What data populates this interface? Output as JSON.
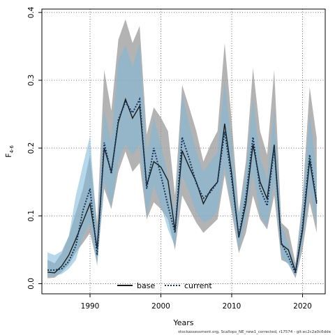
{
  "chart_data": {
    "type": "line",
    "xlabel": "Years",
    "ylabel_main": "F",
    "ylabel_sub": "4-6",
    "xlim": [
      1983.2,
      2023.2
    ],
    "ylim": [
      -0.015,
      0.405
    ],
    "x_ticks": [
      1990,
      2000,
      2010,
      2020
    ],
    "y_ticks": [
      0.0,
      0.1,
      0.2,
      0.3,
      0.4
    ],
    "y_tick_labels": [
      "0.0",
      "0.1",
      "0.2",
      "0.3",
      "0.4"
    ],
    "grid": true,
    "legend_position": "bottom",
    "footer": "stockassessment.org, Scallops_NE_new1_corrected, r17574 - git:ec2c2a0c6dde",
    "years": [
      1984,
      1985,
      1986,
      1987,
      1988,
      1989,
      1990,
      1991,
      1992,
      1993,
      1994,
      1995,
      1996,
      1997,
      1998,
      1999,
      2000,
      2001,
      2002,
      2003,
      2004,
      2005,
      2006,
      2007,
      2008,
      2009,
      2010,
      2011,
      2012,
      2013,
      2014,
      2015,
      2016,
      2017,
      2018,
      2019,
      2020,
      2021,
      2022
    ],
    "series": [
      {
        "name": "base",
        "color": "#1a1a1a",
        "band_color": "#9a9a9a",
        "values": [
          0.017,
          0.016,
          0.026,
          0.042,
          0.066,
          0.092,
          0.118,
          0.052,
          0.2,
          0.165,
          0.238,
          0.272,
          0.244,
          0.262,
          0.145,
          0.18,
          0.172,
          0.152,
          0.078,
          0.196,
          0.172,
          0.15,
          0.118,
          0.138,
          0.15,
          0.236,
          0.162,
          0.068,
          0.118,
          0.205,
          0.15,
          0.125,
          0.205,
          0.058,
          0.05,
          0.018,
          0.078,
          0.182,
          0.118
        ],
        "lower": [
          0.008,
          0.009,
          0.017,
          0.028,
          0.046,
          0.06,
          0.075,
          0.03,
          0.14,
          0.11,
          0.165,
          0.195,
          0.165,
          0.178,
          0.095,
          0.12,
          0.11,
          0.095,
          0.05,
          0.13,
          0.11,
          0.09,
          0.075,
          0.085,
          0.095,
          0.16,
          0.105,
          0.045,
          0.075,
          0.13,
          0.095,
          0.08,
          0.13,
          0.035,
          0.03,
          0.008,
          0.05,
          0.12,
          0.075
        ],
        "upper": [
          0.035,
          0.03,
          0.045,
          0.07,
          0.105,
          0.14,
          0.19,
          0.09,
          0.315,
          0.255,
          0.36,
          0.39,
          0.355,
          0.38,
          0.22,
          0.26,
          0.245,
          0.225,
          0.13,
          0.293,
          0.26,
          0.225,
          0.18,
          0.205,
          0.225,
          0.355,
          0.24,
          0.105,
          0.18,
          0.318,
          0.225,
          0.19,
          0.315,
          0.09,
          0.08,
          0.03,
          0.125,
          0.29,
          0.215
        ]
      },
      {
        "name": "current",
        "color": "#16365c",
        "band_color": "#7ab8d9",
        "values": [
          0.02,
          0.02,
          0.022,
          0.033,
          0.056,
          0.108,
          0.14,
          0.042,
          0.208,
          0.162,
          0.242,
          0.268,
          0.252,
          0.272,
          0.14,
          0.2,
          0.16,
          0.115,
          0.075,
          0.216,
          0.184,
          0.148,
          0.126,
          0.135,
          0.15,
          0.224,
          0.154,
          0.07,
          0.128,
          0.216,
          0.14,
          0.115,
          0.2,
          0.06,
          0.04,
          0.015,
          0.085,
          0.19,
          0.12
        ],
        "lower": [
          0.01,
          0.012,
          0.014,
          0.022,
          0.035,
          0.07,
          0.09,
          0.025,
          0.15,
          0.115,
          0.18,
          0.205,
          0.19,
          0.205,
          0.1,
          0.145,
          0.115,
          0.08,
          0.055,
          0.16,
          0.135,
          0.105,
          0.09,
          0.095,
          0.108,
          0.175,
          0.115,
          0.05,
          0.095,
          0.165,
          0.1,
          0.085,
          0.15,
          0.04,
          0.028,
          0.01,
          0.06,
          0.14,
          0.085
        ],
        "upper": [
          0.046,
          0.042,
          0.048,
          0.07,
          0.13,
          0.175,
          0.218,
          0.075,
          0.255,
          0.21,
          0.33,
          0.352,
          0.32,
          0.355,
          0.19,
          0.245,
          0.205,
          0.16,
          0.105,
          0.28,
          0.235,
          0.195,
          0.165,
          0.18,
          0.195,
          0.3,
          0.205,
          0.1,
          0.165,
          0.275,
          0.185,
          0.155,
          0.255,
          0.085,
          0.06,
          0.025,
          0.115,
          0.25,
          0.165
        ]
      }
    ]
  }
}
